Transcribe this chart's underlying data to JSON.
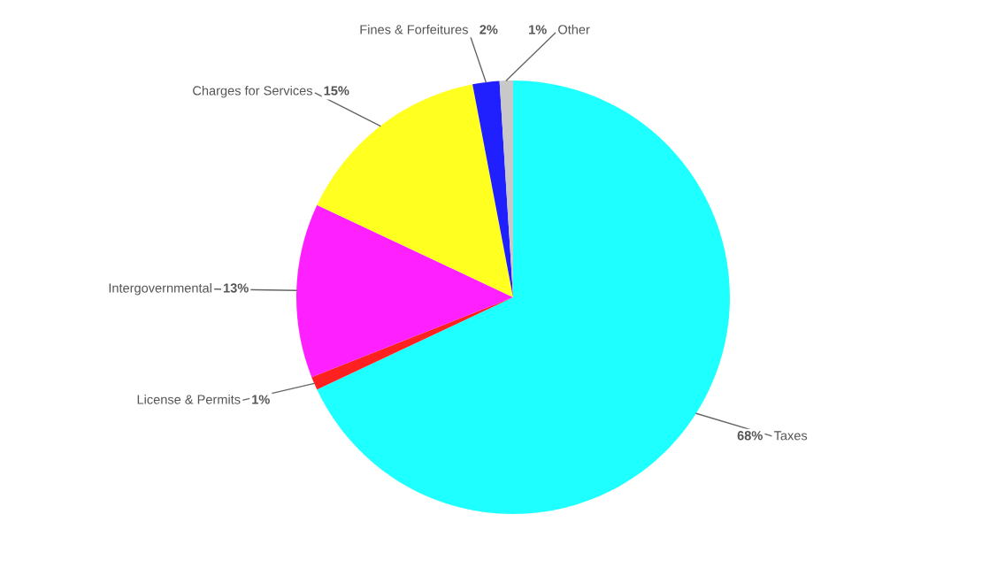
{
  "chart_data": {
    "type": "pie",
    "categories": [
      "Taxes",
      "License & Permits",
      "Intergovernmental",
      "Charges for Services",
      "Fines & Forfeitures",
      "Other"
    ],
    "values": [
      68,
      1,
      13,
      15,
      2,
      1
    ],
    "value_labels": [
      "68%",
      "1%",
      "13%",
      "15%",
      "2%",
      "1%"
    ],
    "colors": [
      "#1effff",
      "#ff2020",
      "#ff20ff",
      "#ffff20",
      "#2020ff",
      "#c8c8c8"
    ]
  }
}
